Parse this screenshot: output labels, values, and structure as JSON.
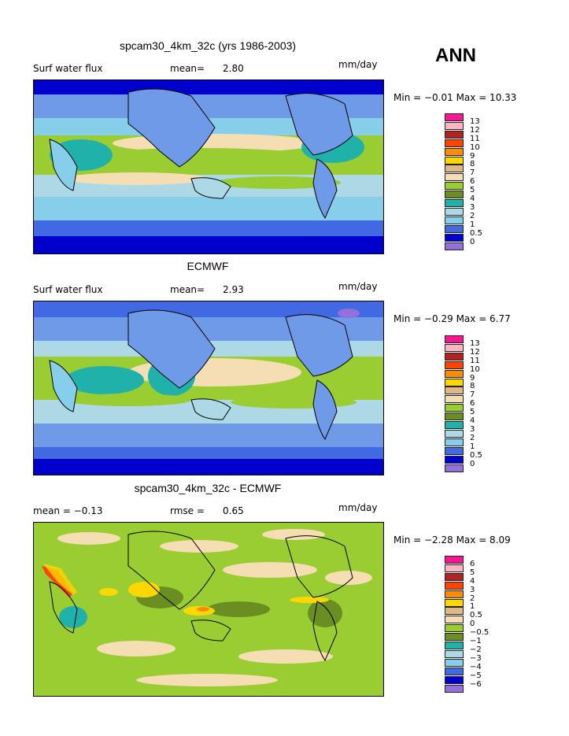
{
  "season": "ANN",
  "panels": [
    {
      "id": "model",
      "title": "spcam30_4km_32c (yrs 1986-2003)",
      "left_label": "Surf water flux",
      "stat_label": "mean=",
      "stat_value": "2.80",
      "units": "mm/day",
      "minmax": "Min =   −0.01  Max =    10.33",
      "legend_labels": [
        "13",
        "12",
        "11",
        "10",
        "9",
        "8",
        "7",
        "6",
        "5",
        "4",
        "3",
        "2",
        "1",
        "0.5",
        "0"
      ]
    },
    {
      "id": "obs",
      "title": "ECMWF",
      "left_label": "Surf water flux",
      "stat_label": "mean=",
      "stat_value": "2.93",
      "units": "mm/day",
      "minmax": "Min =   −0.29  Max =     6.77",
      "legend_labels": [
        "13",
        "12",
        "11",
        "10",
        "9",
        "8",
        "7",
        "6",
        "5",
        "4",
        "3",
        "2",
        "1",
        "0.5",
        "0"
      ]
    },
    {
      "id": "diff",
      "title": "spcam30_4km_32c - ECMWF",
      "left_label": "mean =   −0.13",
      "stat_label": "rmse =",
      "stat_value": "0.65",
      "units": "mm/day",
      "minmax": "Min =   −2.28  Max =     8.09",
      "legend_labels": [
        "6",
        "5",
        "4",
        "3",
        "2",
        "1",
        "0.5",
        "0",
        "−0.5",
        "−1",
        "−2",
        "−3",
        "−4",
        "−5",
        "−6"
      ]
    }
  ],
  "colors": {
    "abs_scale": [
      "#ff1493",
      "#ffb6c1",
      "#b22222",
      "#ff4500",
      "#ff8c00",
      "#ffd700",
      "#deb887",
      "#f5deb3",
      "#9acd32",
      "#6b8e23",
      "#20b2aa",
      "#add8e6",
      "#87ceeb",
      "#4169e1",
      "#0000cd",
      "#9370db"
    ],
    "diff_scale": [
      "#ff1493",
      "#ffb6c1",
      "#b22222",
      "#ff4500",
      "#ff8c00",
      "#ffd700",
      "#deb887",
      "#f5deb3",
      "#9acd32",
      "#6b8e23",
      "#20b2aa",
      "#add8e6",
      "#87ceeb",
      "#4169e1",
      "#0000cd",
      "#9370db"
    ]
  }
}
